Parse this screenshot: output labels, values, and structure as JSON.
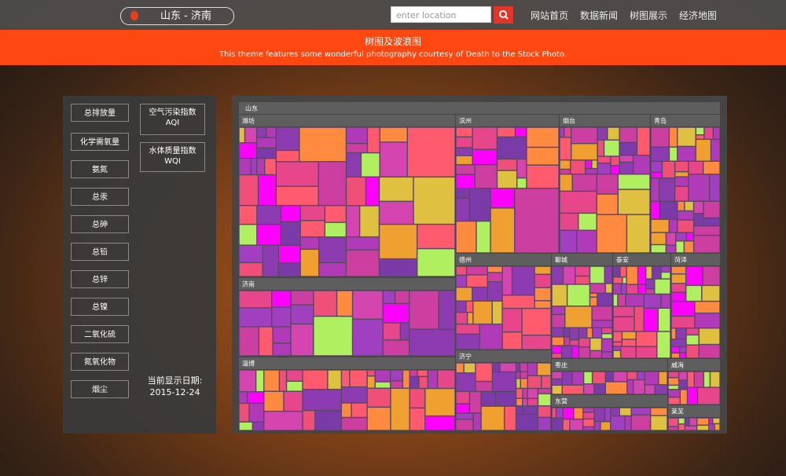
{
  "header": {
    "brand": "山东 - 济南",
    "search_placeholder": "enter location",
    "nav": [
      "网站首页",
      "数据新闻",
      "树图展示",
      "经济地图"
    ]
  },
  "banner": {
    "title": "树图及波浪图",
    "subtitle": "This theme features some wonderful photography courtesy of Death to the Stock Photo."
  },
  "indicators": [
    "总排放量",
    "化学需氧量",
    "氨氮",
    "总汞",
    "总砷",
    "总铅",
    "总锌",
    "总镍",
    "二氧化硫",
    "氮氧化物",
    "烟尘"
  ],
  "indices": [
    {
      "name": "空气污染指数",
      "code": "AQI"
    },
    {
      "name": "水体质量指数",
      "code": "WQI"
    }
  ],
  "date": {
    "label": "当前显示日期:",
    "value": "2015-12-24"
  },
  "treemap": {
    "root": "山东",
    "regions": [
      "潍坊",
      "济南",
      "淄博",
      "滨州",
      "烟台",
      "青岛",
      "德州",
      "聊城",
      "泰安",
      "菏泽",
      "济宁",
      "枣庄",
      "东营",
      "威海",
      "莱芜"
    ]
  }
}
